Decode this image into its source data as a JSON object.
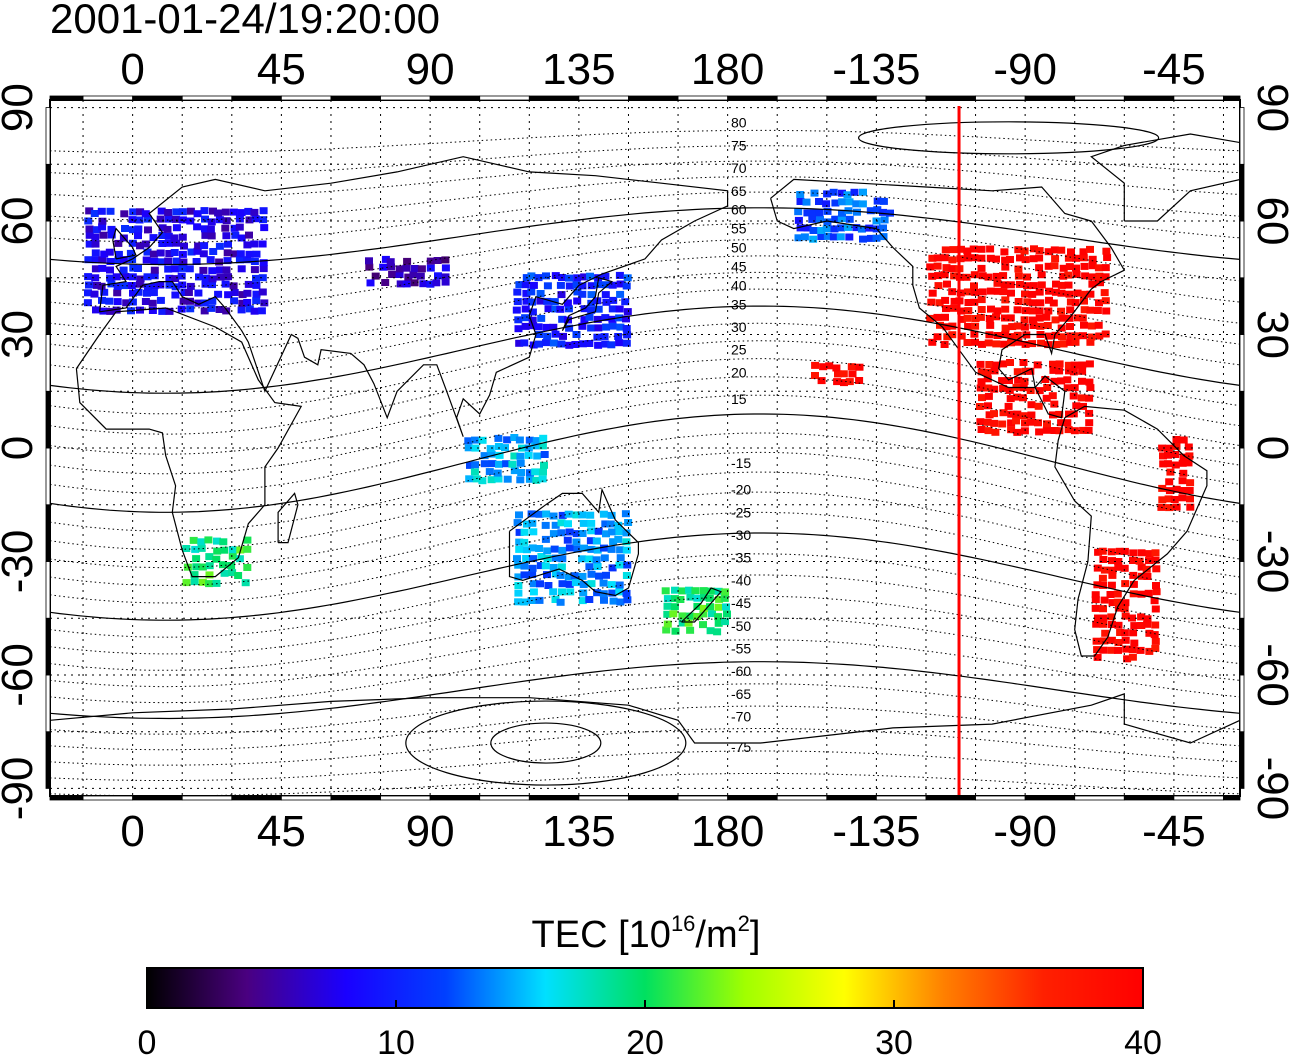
{
  "title": "2001-01-24/19:20:00",
  "map": {
    "lon_range": [
      -25,
      335
    ],
    "lat_range": [
      -92,
      92
    ],
    "top_lon_labels": [
      "0",
      "45",
      "90",
      "135",
      "180",
      "-135",
      "-90",
      "-45"
    ],
    "bottom_lon_labels": [
      "0",
      "45",
      "90",
      "135",
      "180",
      "-135",
      "-90",
      "-45"
    ],
    "lon_label_values": [
      0,
      45,
      90,
      135,
      180,
      225,
      270,
      315
    ],
    "left_lat_labels": [
      "90",
      "60",
      "30",
      "0",
      "-30",
      "-60",
      "-90"
    ],
    "right_lat_labels": [
      "90",
      "60",
      "30",
      "0",
      "-30",
      "-60",
      "-90"
    ],
    "lat_label_values": [
      90,
      60,
      30,
      0,
      -30,
      -60,
      -90
    ],
    "grid": true,
    "noon_meridian_lon": -110,
    "contour_labels": [
      "80",
      "75",
      "70",
      "65",
      "60",
      "55",
      "50",
      "45",
      "40",
      "35",
      "30",
      "25",
      "20",
      "15",
      "-15",
      "-20",
      "-25",
      "-30",
      "-35",
      "-40",
      "-45",
      "-50",
      "-55",
      "-60",
      "-65",
      "-70",
      "-75"
    ],
    "contour_label_lat": [
      86,
      80,
      74,
      68,
      63,
      58,
      53,
      48,
      43,
      38,
      32,
      26,
      20,
      13,
      -4,
      -11,
      -17,
      -23,
      -29,
      -35,
      -41,
      -47,
      -53,
      -59,
      -65,
      -71,
      -79
    ]
  },
  "colorbar": {
    "label_prefix": "TEC  [10",
    "label_exp": "16",
    "label_mid": "/m",
    "label_exp2": "2",
    "label_suffix": "]",
    "ticks": [
      "0",
      "10",
      "20",
      "30",
      "40"
    ],
    "tick_values": [
      0,
      10,
      20,
      30,
      40
    ],
    "range": [
      0,
      40
    ],
    "stops": [
      "#000000",
      "#4a0080",
      "#1a00ff",
      "#0040ff",
      "#00e0ff",
      "#00e060",
      "#a0ff00",
      "#ffff00",
      "#ff8000",
      "#ff2000",
      "#ff0000"
    ]
  },
  "chart_data": {
    "type": "heatmap",
    "title": "2001-01-24/19:20:00",
    "xlabel": "",
    "ylabel": "",
    "value_label": "TEC  [10^16/m^2]",
    "zlim": [
      0,
      40
    ],
    "regions": [
      {
        "lon": [
          -15,
          40
        ],
        "lat": [
          37,
          65
        ],
        "tec": 8
      },
      {
        "lon": [
          70,
          95
        ],
        "lat": [
          44,
          52
        ],
        "tec": 6
      },
      {
        "lon": [
          115,
          150
        ],
        "lat": [
          28,
          48
        ],
        "tec": 10
      },
      {
        "lon": [
          200,
          230
        ],
        "lat": [
          56,
          70
        ],
        "tec": 12
      },
      {
        "lon": [
          240,
          295
        ],
        "lat": [
          28,
          55
        ],
        "tec": 40
      },
      {
        "lon": [
          255,
          290
        ],
        "lat": [
          5,
          25
        ],
        "tec": 40
      },
      {
        "lon": [
          290,
          310
        ],
        "lat": [
          -55,
          -25
        ],
        "tec": 40
      },
      {
        "lon": [
          310,
          320
        ],
        "lat": [
          -15,
          5
        ],
        "tec": 40
      },
      {
        "lon": [
          15,
          35
        ],
        "lat": [
          -35,
          -22
        ],
        "tec": 20
      },
      {
        "lon": [
          160,
          180
        ],
        "lat": [
          -48,
          -35
        ],
        "tec": 20
      },
      {
        "lon": [
          115,
          150
        ],
        "lat": [
          -40,
          -15
        ],
        "tec": 14
      },
      {
        "lon": [
          100,
          125
        ],
        "lat": [
          -8,
          5
        ],
        "tec": 15
      },
      {
        "lon": [
          205,
          220
        ],
        "lat": [
          18,
          24
        ],
        "tec": 40
      }
    ]
  }
}
